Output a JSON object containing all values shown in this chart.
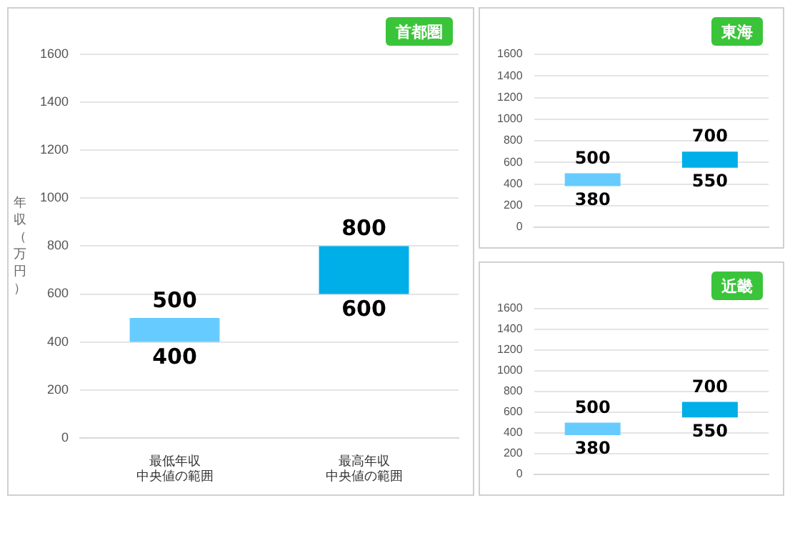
{
  "chart_data": [
    {
      "type": "bar",
      "title": "首都圏",
      "ylabel": "年収（万円）",
      "categories": [
        "最低年収中央値の範囲",
        "最高年収中央値の範囲"
      ],
      "values": [
        100,
        200
      ],
      "base": [
        400,
        600
      ],
      "colors": [
        "#66ccff",
        "#00aee8"
      ],
      "ylim": [
        0,
        1600
      ],
      "yticks": [
        0,
        200,
        400,
        600,
        800,
        1000,
        1200,
        1400,
        1600
      ],
      "grid": "y",
      "legend": false,
      "annotations": [
        {
          "text": "500",
          "x": "最低年収中央値の範囲",
          "y": 500
        },
        {
          "text": "400",
          "x": "最低年収中央値の範囲",
          "y": 400
        },
        {
          "text": "800",
          "x": "最高年収中央値の範囲",
          "y": 800
        },
        {
          "text": "600",
          "x": "最高年収中央値の範囲",
          "y": 600
        }
      ]
    },
    {
      "type": "bar",
      "title": "東海",
      "categories": [
        null,
        null
      ],
      "values": [
        120,
        150
      ],
      "base": [
        380,
        550
      ],
      "colors": [
        "#66ccff",
        "#00aee8"
      ],
      "ylim": [
        0,
        1600
      ],
      "yticks": [
        0,
        200,
        400,
        600,
        800,
        1000,
        1200,
        1400,
        1600
      ],
      "grid": "y",
      "legend": false,
      "tick_labels": "y",
      "annotations": [
        {
          "text": "500",
          "y": 500
        },
        {
          "text": "380",
          "y": 380
        },
        {
          "text": "700",
          "y": 700
        },
        {
          "text": "550",
          "y": 550
        }
      ]
    },
    {
      "type": "bar",
      "title": "近畿",
      "categories": [
        null,
        null
      ],
      "values": [
        120,
        150
      ],
      "base": [
        380,
        550
      ],
      "colors": [
        "#66ccff",
        "#00aee8"
      ],
      "ylim": [
        0,
        1600
      ],
      "yticks": [
        0,
        200,
        400,
        600,
        800,
        1000,
        1200,
        1400,
        1600
      ],
      "grid": "y",
      "legend": false,
      "tick_labels": "y",
      "annotations": [
        {
          "text": "500",
          "y": 500
        },
        {
          "text": "380",
          "y": 380
        },
        {
          "text": "700",
          "y": 700
        },
        {
          "text": "550",
          "y": 550
        }
      ]
    }
  ]
}
